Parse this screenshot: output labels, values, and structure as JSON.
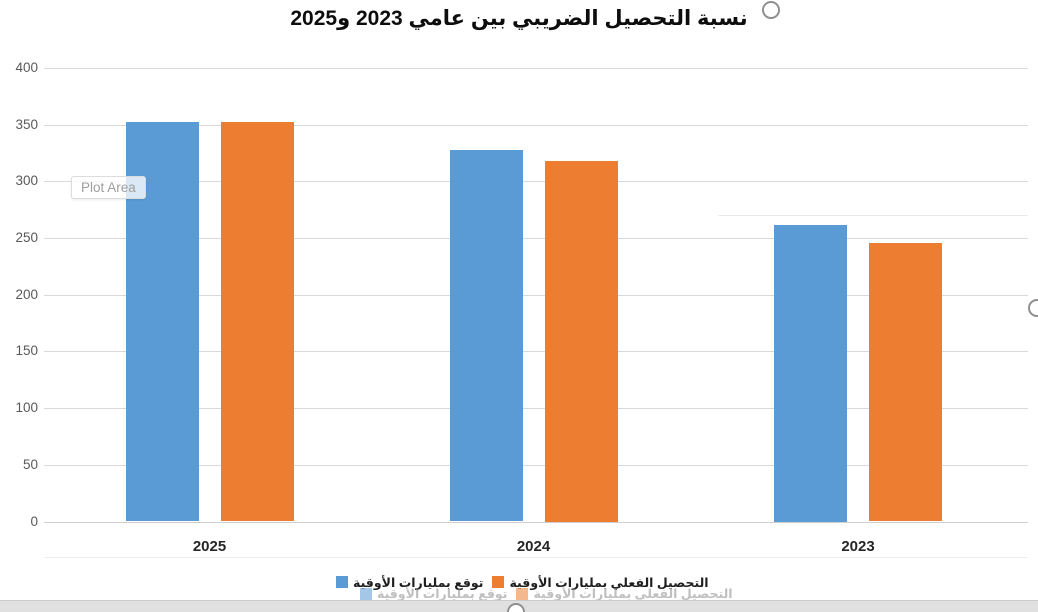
{
  "window": {
    "background": "#ffffff"
  },
  "plot_area_tooltip": "Plot Area",
  "chart_data": {
    "type": "bar",
    "title": "نسبة التحصيل الضريبي بين عامي 2023 و2025",
    "categories": [
      "2025",
      "2024",
      "2023"
    ],
    "series": [
      {
        "name": "توقع بمليارات الأوقية",
        "color": "#5B9BD5",
        "values": [
          352,
          328,
          262
        ]
      },
      {
        "name": "التحصيل الفعلي بمليارات الأوقية",
        "color": "#ED7D31",
        "values": [
          352,
          318,
          246
        ]
      }
    ],
    "ylim": [
      0,
      400
    ],
    "ytick_step": 50,
    "yticks": [
      0,
      50,
      100,
      150,
      200,
      250,
      300,
      350,
      400
    ],
    "grid": true,
    "legend_position": "bottom",
    "text_direction": "rtl",
    "colors": {
      "gridline": "#D9D9D9",
      "axis_tick_labels": "#595959",
      "category_labels": "#262626",
      "title": "#0D0D0D",
      "selection_handle": "#8F8F8F"
    }
  }
}
